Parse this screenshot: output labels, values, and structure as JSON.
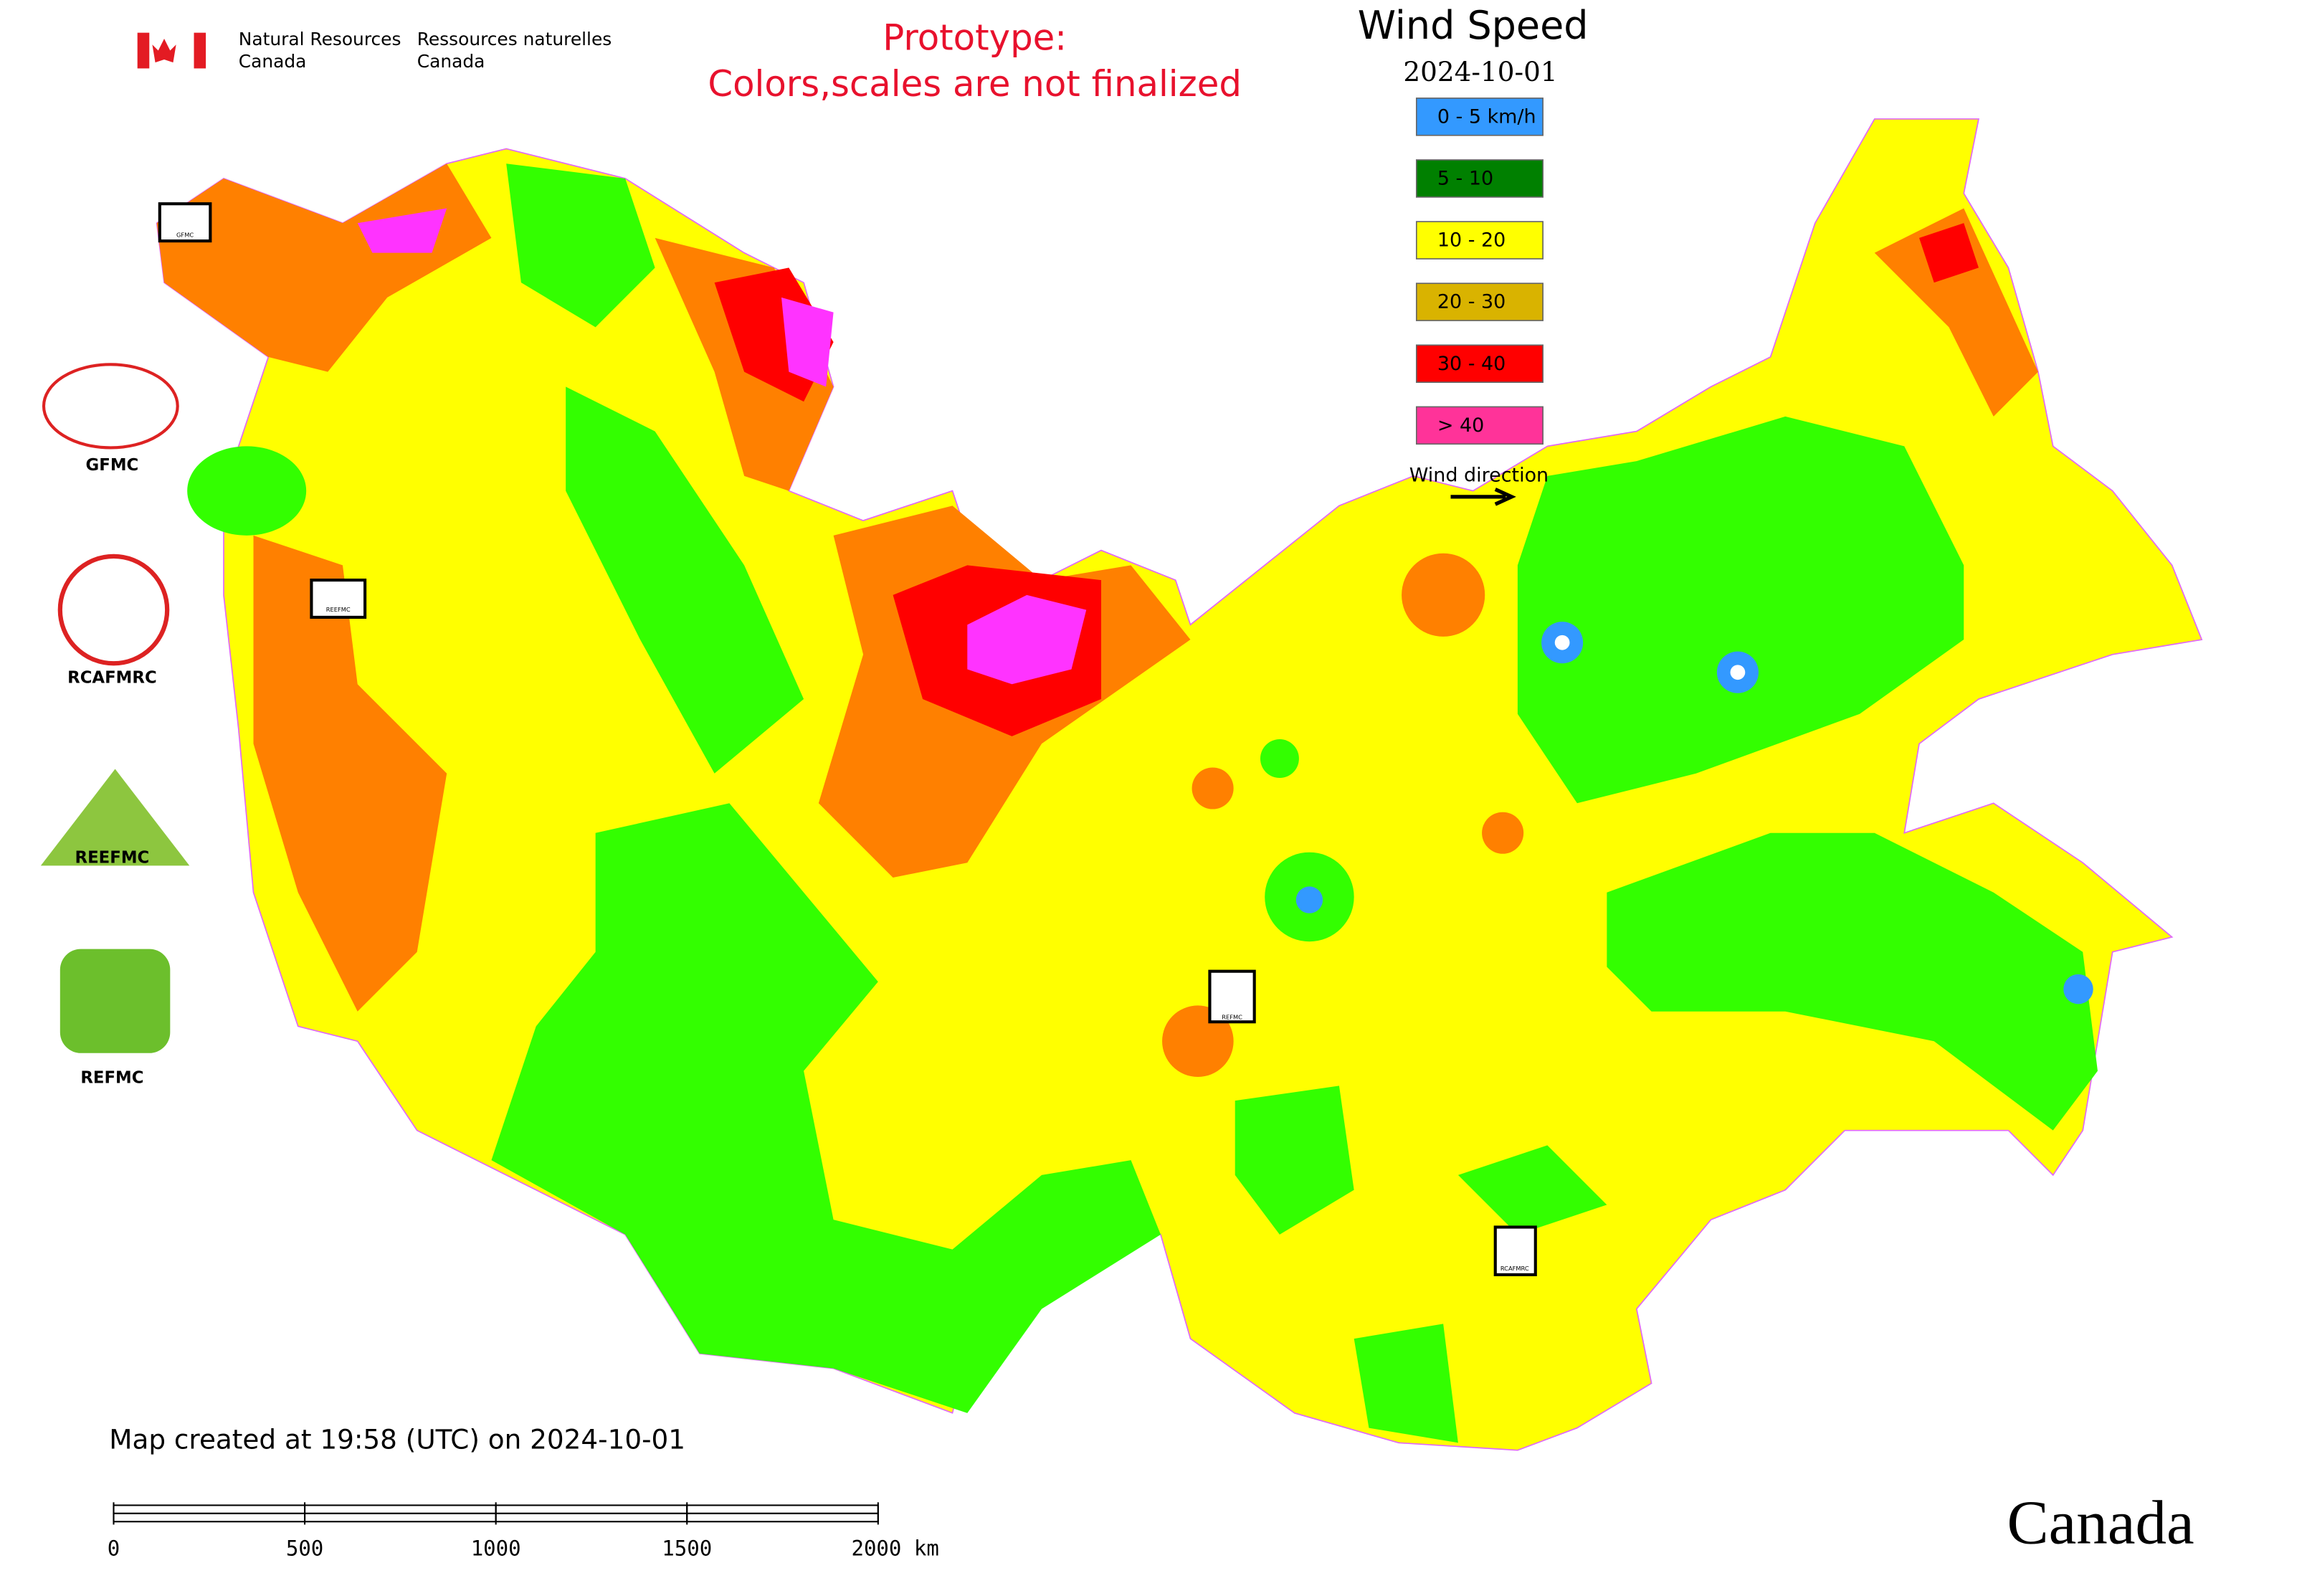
{
  "header": {
    "org_en": "Natural Resources",
    "org_en_2": "Canada",
    "org_fr": "Ressources naturelles",
    "org_fr_2": "Canada"
  },
  "notice": {
    "line1": "Prototype:",
    "line2": "Colors,scales are not finalized"
  },
  "title": "Wind Speed",
  "date": "2024-10-01",
  "legend": {
    "items": [
      {
        "label": "0 - 5 km/h",
        "color": "#3399ff"
      },
      {
        "label": "5 - 10",
        "color": "#008000"
      },
      {
        "label": "10 - 20",
        "color": "#ffff00"
      },
      {
        "label": "20 - 30",
        "color": "#d9b300"
      },
      {
        "label": "30 - 40",
        "color": "#ff0000"
      },
      {
        "label": "> 40",
        "color": "#ff3399"
      }
    ],
    "direction": "Wind direction"
  },
  "logos": [
    "GFMC",
    "RCAFMRC",
    "REEFMC",
    "REFMC"
  ],
  "map_badges": [
    "GFMC",
    "REEFMC",
    "REFMC",
    "RCAFMRC"
  ],
  "footer": "Map created at 19:58 (UTC) on 2024-10-01",
  "scale_bar": {
    "ticks": [
      0,
      500,
      1000,
      1500,
      {
        "value": 2000,
        "label": "2000 km"
      }
    ],
    "max": 2000
  },
  "wordmark": "Canada"
}
